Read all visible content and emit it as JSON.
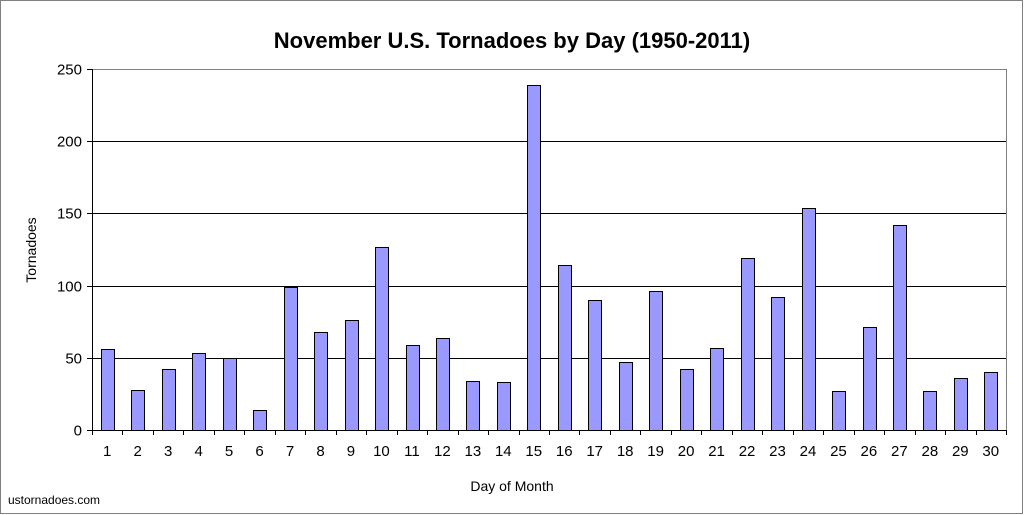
{
  "chart_data": {
    "type": "bar",
    "title": "November U.S. Tornadoes by Day (1950-2011)",
    "xlabel": "Day of Month",
    "ylabel": "Tornadoes",
    "ylim": [
      0,
      250
    ],
    "yticks": [
      0,
      50,
      100,
      150,
      200,
      250
    ],
    "categories": [
      "1",
      "2",
      "3",
      "4",
      "5",
      "6",
      "7",
      "8",
      "9",
      "10",
      "11",
      "12",
      "13",
      "14",
      "15",
      "16",
      "17",
      "18",
      "19",
      "20",
      "21",
      "22",
      "23",
      "24",
      "25",
      "26",
      "27",
      "28",
      "29",
      "30"
    ],
    "values": [
      56,
      28,
      42,
      53,
      50,
      14,
      99,
      68,
      76,
      127,
      59,
      64,
      34,
      33,
      239,
      114,
      90,
      47,
      96,
      42,
      57,
      119,
      92,
      154,
      27,
      71,
      142,
      27,
      36,
      40
    ],
    "grid": true,
    "legend": false,
    "bar_color": "#9999FF"
  },
  "credit": "ustornadoes.com"
}
